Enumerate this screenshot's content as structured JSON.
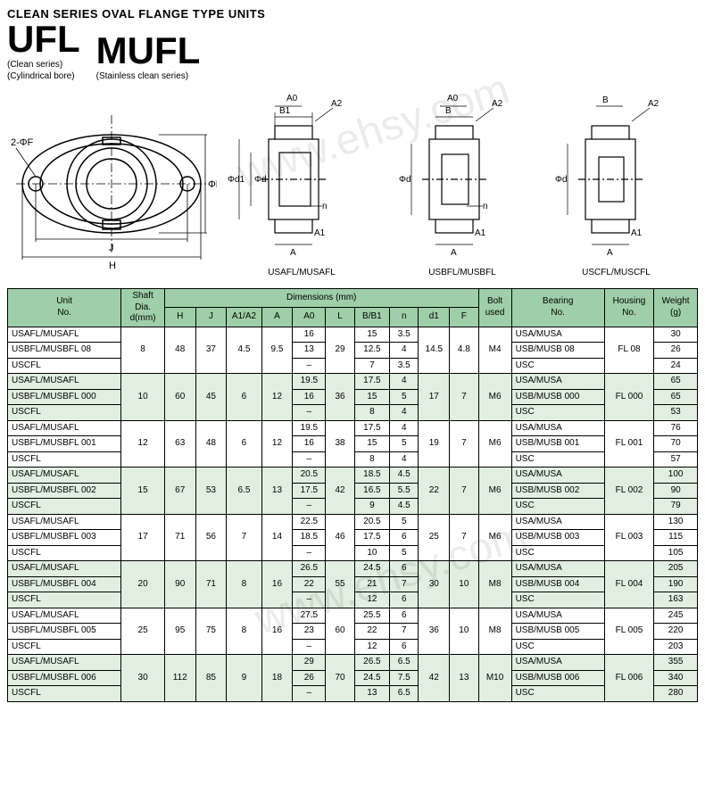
{
  "header": {
    "line1": "CLEAN SERIES  OVAL FLANGE TYPE UNITS",
    "titles": [
      {
        "big": "UFL",
        "sub1": "(Clean series)",
        "sub2": "(Cylindrical bore)"
      },
      {
        "big": "MUFL",
        "sub1": "(Stainless clean series)",
        "sub2": ""
      }
    ]
  },
  "diagram_labels": {
    "main": {
      "F": "2-ΦF",
      "L": "ΦL",
      "J": "J",
      "H": "H"
    },
    "side": [
      {
        "name": "USAFL/MUSAFL",
        "top": "A0",
        "top2": "B1",
        "top3": "A2",
        "d": "Φd1",
        "d2": "Φd",
        "n": "n",
        "A1": "A1",
        "A": "A"
      },
      {
        "name": "USBFL/MUSBFL",
        "top": "A0",
        "top2": "B",
        "top3": "A2",
        "d": "Φd",
        "n": "n",
        "A1": "A1",
        "A": "A"
      },
      {
        "name": "USCFL/MUSCFL",
        "top2": "B",
        "top3": "A2",
        "d": "Φd",
        "A1": "A1",
        "A": "A"
      }
    ]
  },
  "table": {
    "headers": {
      "unit": "Unit\nNo.",
      "shaft": "Shaft Dia.\nd(mm)",
      "dims": "Dimensions (mm)",
      "H": "H",
      "J": "J",
      "A1A2": "A1/A2",
      "A": "A",
      "A0": "A0",
      "L": "L",
      "BB1": "B/B1",
      "n": "n",
      "d1": "d1",
      "F": "F",
      "bolt": "Bolt\nused",
      "bearing": "Bearing\nNo.",
      "housing": "Housing\nNo.",
      "weight": "Weight\n(g)"
    },
    "col_widths": [
      "110",
      "42",
      "30",
      "30",
      "34",
      "30",
      "32",
      "28",
      "34",
      "28",
      "30",
      "28",
      "32",
      "90",
      "48",
      "42"
    ],
    "groups": [
      {
        "suffix": "08",
        "shaft": "8",
        "H": "48",
        "J": "37",
        "A1A2": "4.5",
        "A": "9.5",
        "L": "29",
        "d1": "14.5",
        "F": "4.8",
        "bolt": "M4",
        "bearing_suffix": "08",
        "housing": "FL 08",
        "rows": [
          {
            "unit": "USAFL/MUSAFL",
            "A0": "16",
            "BB1": "15",
            "n": "3.5",
            "bearing": "USA/MUSA",
            "weight": "30"
          },
          {
            "unit": "USBFL/MUSBFL 08",
            "A0": "13",
            "BB1": "12.5",
            "n": "4",
            "bearing": "USB/MUSB 08",
            "weight": "26"
          },
          {
            "unit": "USCFL",
            "A0": "–",
            "BB1": "7",
            "n": "3.5",
            "bearing": "USC",
            "weight": "24"
          }
        ]
      },
      {
        "suffix": "000",
        "shaft": "10",
        "H": "60",
        "J": "45",
        "A1A2": "6",
        "A": "12",
        "L": "36",
        "d1": "17",
        "F": "7",
        "bolt": "M6",
        "bearing_suffix": "000",
        "housing": "FL 000",
        "rows": [
          {
            "unit": "USAFL/MUSAFL",
            "A0": "19.5",
            "BB1": "17.5",
            "n": "4",
            "bearing": "USA/MUSA",
            "weight": "65"
          },
          {
            "unit": "USBFL/MUSBFL 000",
            "A0": "16",
            "BB1": "15",
            "n": "5",
            "bearing": "USB/MUSB 000",
            "weight": "65"
          },
          {
            "unit": "USCFL",
            "A0": "–",
            "BB1": "8",
            "n": "4",
            "bearing": "USC",
            "weight": "53"
          }
        ]
      },
      {
        "suffix": "001",
        "shaft": "12",
        "H": "63",
        "J": "48",
        "A1A2": "6",
        "A": "12",
        "L": "38",
        "d1": "19",
        "F": "7",
        "bolt": "M6",
        "bearing_suffix": "001",
        "housing": "FL 001",
        "rows": [
          {
            "unit": "USAFL/MUSAFL",
            "A0": "19.5",
            "BB1": "17.5",
            "n": "4",
            "bearing": "USA/MUSA",
            "weight": "76"
          },
          {
            "unit": "USBFL/MUSBFL 001",
            "A0": "16",
            "BB1": "15",
            "n": "5",
            "bearing": "USB/MUSB 001",
            "weight": "70"
          },
          {
            "unit": "USCFL",
            "A0": "–",
            "BB1": "8",
            "n": "4",
            "bearing": "USC",
            "weight": "57"
          }
        ]
      },
      {
        "suffix": "002",
        "shaft": "15",
        "H": "67",
        "J": "53",
        "A1A2": "6.5",
        "A": "13",
        "L": "42",
        "d1": "22",
        "F": "7",
        "bolt": "M6",
        "bearing_suffix": "002",
        "housing": "FL 002",
        "rows": [
          {
            "unit": "USAFL/MUSAFL",
            "A0": "20.5",
            "BB1": "18.5",
            "n": "4.5",
            "bearing": "USA/MUSA",
            "weight": "100"
          },
          {
            "unit": "USBFL/MUSBFL 002",
            "A0": "17.5",
            "BB1": "16.5",
            "n": "5.5",
            "bearing": "USB/MUSB 002",
            "weight": "90"
          },
          {
            "unit": "USCFL",
            "A0": "–",
            "BB1": "9",
            "n": "4.5",
            "bearing": "USC",
            "weight": "79"
          }
        ]
      },
      {
        "suffix": "003",
        "shaft": "17",
        "H": "71",
        "J": "56",
        "A1A2": "7",
        "A": "14",
        "L": "46",
        "d1": "25",
        "F": "7",
        "bolt": "M6",
        "bearing_suffix": "003",
        "housing": "FL 003",
        "rows": [
          {
            "unit": "USAFL/MUSAFL",
            "A0": "22.5",
            "BB1": "20.5",
            "n": "5",
            "bearing": "USA/MUSA",
            "weight": "130"
          },
          {
            "unit": "USBFL/MUSBFL 003",
            "A0": "18.5",
            "BB1": "17.5",
            "n": "6",
            "bearing": "USB/MUSB 003",
            "weight": "115"
          },
          {
            "unit": "USCFL",
            "A0": "–",
            "BB1": "10",
            "n": "5",
            "bearing": "USC",
            "weight": "105"
          }
        ]
      },
      {
        "suffix": "004",
        "shaft": "20",
        "H": "90",
        "J": "71",
        "A1A2": "8",
        "A": "16",
        "L": "55",
        "d1": "30",
        "F": "10",
        "bolt": "M8",
        "bearing_suffix": "004",
        "housing": "FL 004",
        "rows": [
          {
            "unit": "USAFL/MUSAFL",
            "A0": "26.5",
            "BB1": "24.5",
            "n": "6",
            "bearing": "USA/MUSA",
            "weight": "205"
          },
          {
            "unit": "USBFL/MUSBFL 004",
            "A0": "22",
            "BB1": "21",
            "n": "7",
            "bearing": "USB/MUSB 004",
            "weight": "190"
          },
          {
            "unit": "USCFL",
            "A0": "–",
            "BB1": "12",
            "n": "6",
            "bearing": "USC",
            "weight": "163"
          }
        ]
      },
      {
        "suffix": "005",
        "shaft": "25",
        "H": "95",
        "J": "75",
        "A1A2": "8",
        "A": "16",
        "L": "60",
        "d1": "36",
        "F": "10",
        "bolt": "M8",
        "bearing_suffix": "005",
        "housing": "FL 005",
        "rows": [
          {
            "unit": "USAFL/MUSAFL",
            "A0": "27.5",
            "BB1": "25.5",
            "n": "6",
            "bearing": "USA/MUSA",
            "weight": "245"
          },
          {
            "unit": "USBFL/MUSBFL 005",
            "A0": "23",
            "BB1": "22",
            "n": "7",
            "bearing": "USB/MUSB 005",
            "weight": "220"
          },
          {
            "unit": "USCFL",
            "A0": "–",
            "BB1": "12",
            "n": "6",
            "bearing": "USC",
            "weight": "203"
          }
        ]
      },
      {
        "suffix": "006",
        "shaft": "30",
        "H": "112",
        "J": "85",
        "A1A2": "9",
        "A": "18",
        "L": "70",
        "d1": "42",
        "F": "13",
        "bolt": "M10",
        "bearing_suffix": "006",
        "housing": "FL 006",
        "rows": [
          {
            "unit": "USAFL/MUSAFL",
            "A0": "29",
            "BB1": "26.5",
            "n": "6.5",
            "bearing": "USA/MUSA",
            "weight": "355"
          },
          {
            "unit": "USBFL/MUSBFL 006",
            "A0": "26",
            "BB1": "24.5",
            "n": "7.5",
            "bearing": "USB/MUSB 006",
            "weight": "340"
          },
          {
            "unit": "USCFL",
            "A0": "–",
            "BB1": "13",
            "n": "6.5",
            "bearing": "USC",
            "weight": "280"
          }
        ]
      }
    ]
  },
  "watermark": "www.ehsy.com",
  "colors": {
    "header_bg": "#9fcfa9",
    "stripe_bg": "#e0efe0",
    "border": "#000000"
  }
}
